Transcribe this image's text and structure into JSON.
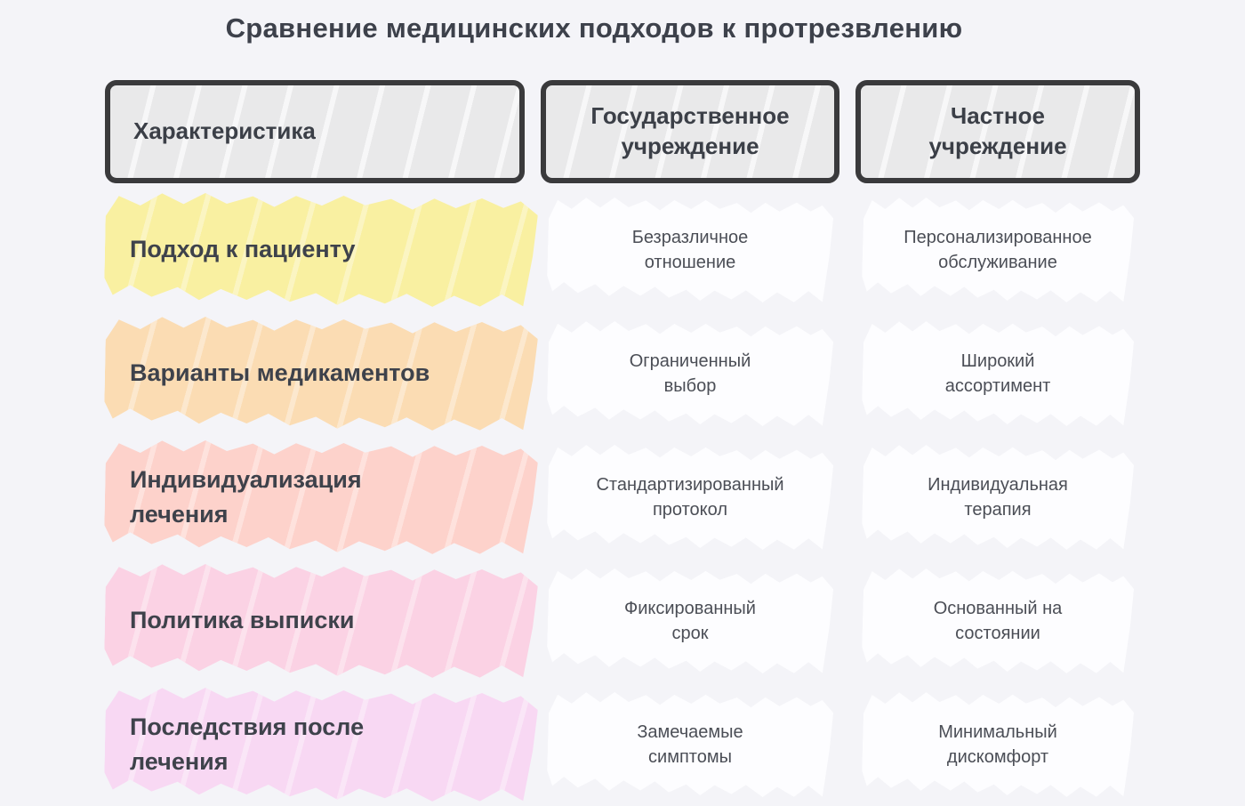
{
  "page": {
    "title": "Сравнение медицинских подходов к протрезвлению"
  },
  "palette": {
    "page_background": "#f4f4f8",
    "header_fill": "#e9e9ea",
    "header_border": "#3a3a3c",
    "cell_highlight": "#fdfdff",
    "title_color": "#3d414b"
  },
  "table": {
    "columns": [
      {
        "label": "Характеристика"
      },
      {
        "label": "Государственное\nучреждение"
      },
      {
        "label": "Частное\nучреждение"
      }
    ],
    "rows": [
      {
        "label": "Подход к пациенту",
        "highlight_color": "#f9f0a1",
        "state_value": "Безразличное\nотношение",
        "private_value": "Персонализированное\nобслуживание"
      },
      {
        "label": "Варианты медикаментов",
        "highlight_color": "#fbdcb3",
        "state_value": "Ограниченный\nвыбор",
        "private_value": "Широкий\nассортимент"
      },
      {
        "label": "Индивидуализация\nлечения",
        "highlight_color": "#fdd2cb",
        "state_value": "Стандартизированный\nпротокол",
        "private_value": "Индивидуальная\nтерапия"
      },
      {
        "label": "Политика выписки",
        "highlight_color": "#fbd2e4",
        "state_value": "Фиксированный\nсрок",
        "private_value": "Основанный на\nсостоянии"
      },
      {
        "label": "Последствия после\nлечения",
        "highlight_color": "#f8d8f3",
        "state_value": "Замечаемые\nсимптомы",
        "private_value": "Минимальный\nдискомфорт"
      }
    ]
  }
}
